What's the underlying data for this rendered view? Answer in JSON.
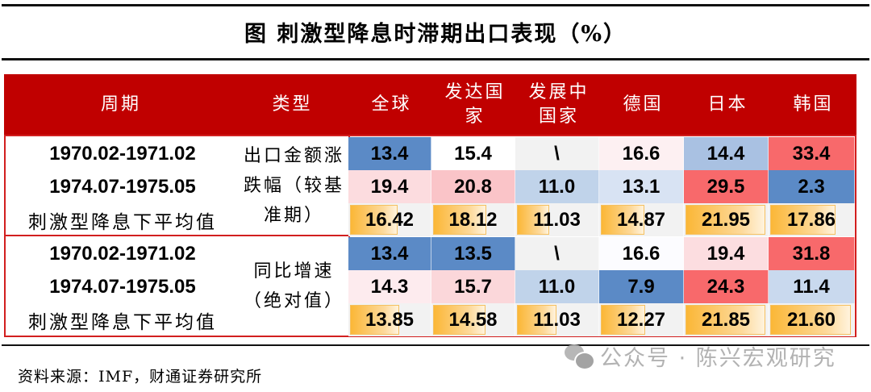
{
  "title": "图  刺激型降息时滞期出口表现（%）",
  "header": {
    "period": "周期",
    "type": "类型",
    "columns": [
      "全球",
      "发达国家",
      "发展中国家",
      "德国",
      "日本",
      "韩国"
    ]
  },
  "groups": [
    {
      "type_label": "出口金额涨跌幅（较基准期）",
      "rows": [
        {
          "period": "1970.02-1971.02",
          "values": [
            "13.4",
            "15.4",
            "\\",
            "16.6",
            "14.4",
            "33.4"
          ],
          "colors": [
            "#5b8ac6",
            "#ffffff",
            "#f2f2f2",
            "#fdf0f2",
            "#a9c1e2",
            "#f8696b"
          ]
        },
        {
          "period": "1974.07-1975.05",
          "values": [
            "19.4",
            "20.8",
            "11.0",
            "13.1",
            "29.5",
            "2.3"
          ],
          "colors": [
            "#fcdcdf",
            "#fac4c8",
            "#c0d3ea",
            "#d8e3f3",
            "#f8696b",
            "#5b8ac6"
          ]
        },
        {
          "period": "刺激型降息下平均值",
          "values": [
            "16.42",
            "18.12",
            "11.03",
            "14.87",
            "21.95",
            "17.86"
          ],
          "bar_pct": [
            61,
            67,
            41,
            55,
            100,
            80
          ],
          "is_average": true
        }
      ]
    },
    {
      "type_label": "同比增速（绝对值）",
      "rows": [
        {
          "period": "1970.02-1971.02",
          "values": [
            "13.4",
            "13.5",
            "\\",
            "16.6",
            "19.4",
            "31.8"
          ],
          "colors": [
            "#5b8ac6",
            "#5b8ac6",
            "#f2f2f2",
            "#fcfcff",
            "#fcdde0",
            "#f8696b"
          ]
        },
        {
          "period": "1974.07-1975.05",
          "values": [
            "14.3",
            "15.7",
            "11.0",
            "7.9",
            "24.3",
            "11.4"
          ],
          "colors": [
            "#fdebee",
            "#fbd7da",
            "#c0d3ea",
            "#5b8ac6",
            "#f8696b",
            "#c9d9ee"
          ]
        },
        {
          "period": "刺激型降息下平均值",
          "values": [
            "13.85",
            "14.58",
            "11.03",
            "12.27",
            "21.85",
            "21.60"
          ],
          "bar_pct": [
            63,
            66,
            50,
            56,
            100,
            99
          ],
          "is_average": true
        }
      ]
    }
  ],
  "source": "资料来源：IMF，财通证券研究所",
  "watermark": "公众号 · 陈兴宏观研究",
  "colors": {
    "header_bg": "#c00000",
    "border": "#d21f1f",
    "blue": "#5b8ac6",
    "red": "#f8696b",
    "bar": "#fbb737"
  }
}
